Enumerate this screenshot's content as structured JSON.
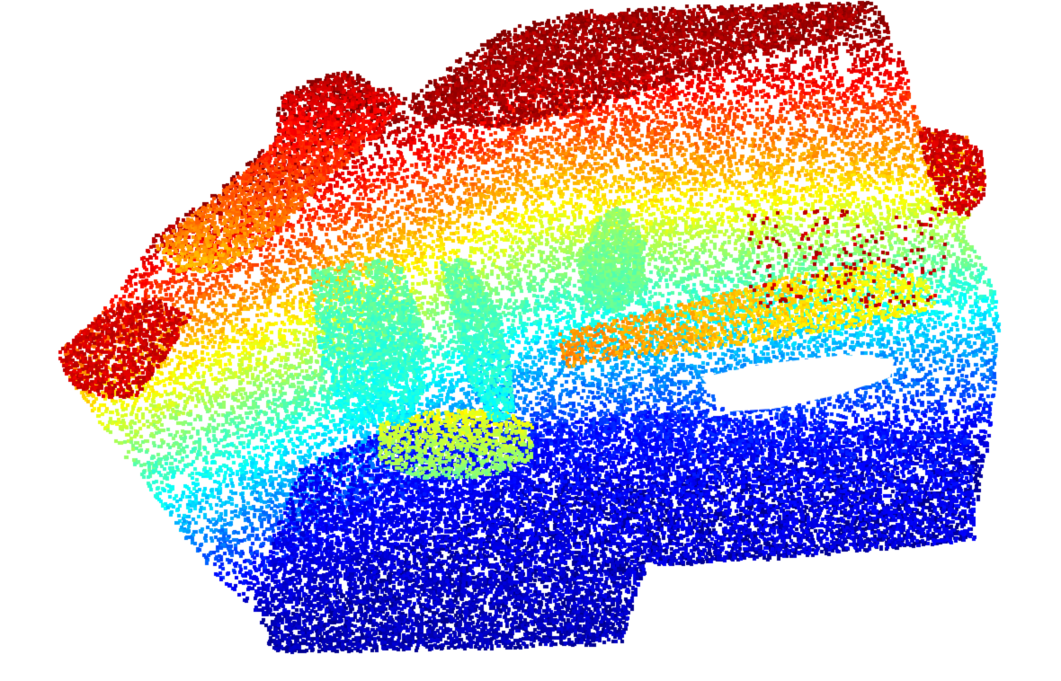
{
  "scene": {
    "colormap": "jet",
    "colormap_stops": [
      "#00008f",
      "#0000ff",
      "#0080ff",
      "#00ffff",
      "#80ff80",
      "#ffff00",
      "#ff8000",
      "#ff0000",
      "#800000"
    ],
    "background": "#ffffff",
    "point_marker": "square"
  }
}
